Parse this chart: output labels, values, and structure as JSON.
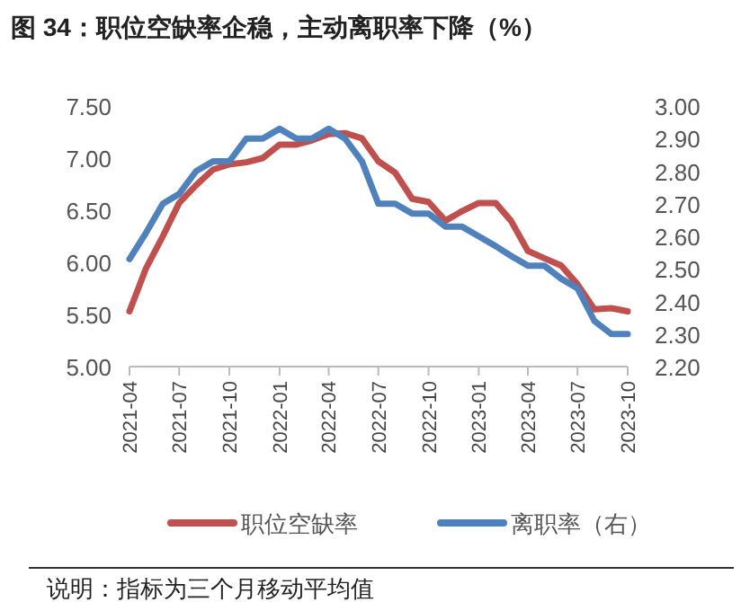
{
  "chart_data": {
    "type": "line",
    "title": "图 34：职位空缺率企稳，主动离职率下降（%）",
    "x": [
      "2021-04",
      "2021-05",
      "2021-06",
      "2021-07",
      "2021-08",
      "2021-09",
      "2021-10",
      "2021-11",
      "2021-12",
      "2022-01",
      "2022-02",
      "2022-03",
      "2022-04",
      "2022-05",
      "2022-06",
      "2022-07",
      "2022-08",
      "2022-09",
      "2022-10",
      "2022-11",
      "2022-12",
      "2023-01",
      "2023-02",
      "2023-03",
      "2023-04",
      "2023-05",
      "2023-06",
      "2023-07",
      "2023-08",
      "2023-09",
      "2023-10"
    ],
    "series": [
      {
        "name": "职位空缺率",
        "color": "#c0504d",
        "values": [
          5.53,
          5.94,
          6.25,
          6.57,
          6.74,
          6.89,
          6.94,
          6.96,
          7.0,
          7.13,
          7.13,
          7.17,
          7.23,
          7.24,
          7.19,
          6.97,
          6.86,
          6.61,
          6.58,
          6.4,
          6.49,
          6.57,
          6.57,
          6.4,
          6.11,
          6.04,
          5.97,
          5.79,
          5.55,
          5.56,
          5.53
        ]
      },
      {
        "name": "离职率（右）",
        "color": "#4f81bd",
        "axis": "y2",
        "values": [
          2.53,
          2.61,
          2.7,
          2.73,
          2.8,
          2.83,
          2.83,
          2.9,
          2.9,
          2.93,
          2.9,
          2.9,
          2.93,
          2.9,
          2.83,
          2.7,
          2.7,
          2.67,
          2.67,
          2.63,
          2.63,
          2.6,
          2.57,
          2.54,
          2.51,
          2.51,
          2.47,
          2.44,
          2.34,
          2.3,
          2.3
        ]
      }
    ],
    "xlim": [
      "2021-04",
      "2023-10"
    ],
    "xticks": [
      "2021-04",
      "2021-07",
      "2021-10",
      "2022-01",
      "2022-04",
      "2022-07",
      "2022-10",
      "2023-01",
      "2023-04",
      "2023-07",
      "2023-10"
    ],
    "ylim": [
      5,
      7.5
    ],
    "yticks": [
      {
        "value": 5,
        "label": "5.00"
      },
      {
        "value": 5.5,
        "label": "5.50"
      },
      {
        "value": 6,
        "label": "6.00"
      },
      {
        "value": 6.5,
        "label": "6.50"
      },
      {
        "value": 7,
        "label": "7.00"
      },
      {
        "value": 7.5,
        "label": "7.50"
      }
    ],
    "y2lim": [
      2.2,
      3.0
    ],
    "y2ticks": [
      {
        "value": 2.2,
        "label": "2.20"
      },
      {
        "value": 2.3,
        "label": "2.30"
      },
      {
        "value": 2.4,
        "label": "2.40"
      },
      {
        "value": 2.5,
        "label": "2.50"
      },
      {
        "value": 2.6,
        "label": "2.60"
      },
      {
        "value": 2.7,
        "label": "2.70"
      },
      {
        "value": 2.8,
        "label": "2.80"
      },
      {
        "value": 2.9,
        "label": "2.90"
      },
      {
        "value": 3.0,
        "label": "3.00"
      }
    ],
    "grid": false,
    "legend": "bottom",
    "line_style": "solid",
    "marker": "none",
    "annotations": [
      "说明：指标为三个月移动平均值"
    ]
  }
}
